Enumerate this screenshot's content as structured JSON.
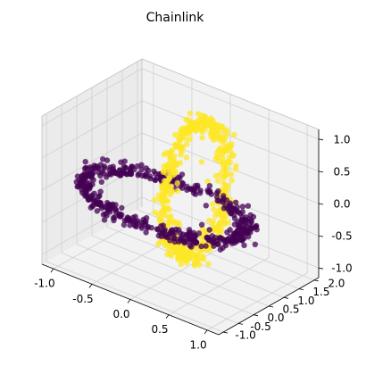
{
  "chart_data": {
    "type": "scatter",
    "projection": "3d",
    "title": "Chainlink",
    "xlabel": "",
    "ylabel": "",
    "zlabel": "",
    "grid": true,
    "legend": "none",
    "xlim": [
      -1.15,
      1.15
    ],
    "ylim": [
      -1.15,
      2.15
    ],
    "zlim": [
      -1.15,
      1.15
    ],
    "x_ticks": [
      "-1.0",
      "-0.5",
      "0.0",
      "0.5",
      "1.0"
    ],
    "y_ticks": [
      "-1.0",
      "-0.5",
      "0.0",
      "0.5",
      "1.0",
      "1.5",
      "2.0"
    ],
    "z_ticks": [
      "-1.0",
      "-0.5",
      "0.0",
      "0.5",
      "1.0"
    ],
    "x_tick_values": [
      -1.0,
      -0.5,
      0.0,
      0.5,
      1.0
    ],
    "y_tick_values": [
      -1.0,
      -0.5,
      0.0,
      0.5,
      1.0,
      1.5,
      2.0
    ],
    "z_tick_values": [
      -1.0,
      -0.5,
      0.0,
      0.5,
      1.0
    ],
    "series": [
      {
        "color": "#440154",
        "description": "ring in the x-y plane",
        "shape": "circle",
        "center": [
          0,
          0,
          0
        ],
        "radius": 1.0,
        "plane": "xy",
        "n_points": 500,
        "noise": 0.06
      },
      {
        "color": "#fde725",
        "description": "ring in the y-z plane",
        "shape": "circle",
        "center": [
          0,
          1,
          0
        ],
        "radius": 1.0,
        "plane": "yz",
        "n_points": 500,
        "noise": 0.06
      }
    ]
  },
  "colors": {
    "pane": "#f2f2f2",
    "pane_left": "#ebebeb",
    "grid": "#d0d0d0",
    "axis_line": "#000000"
  }
}
